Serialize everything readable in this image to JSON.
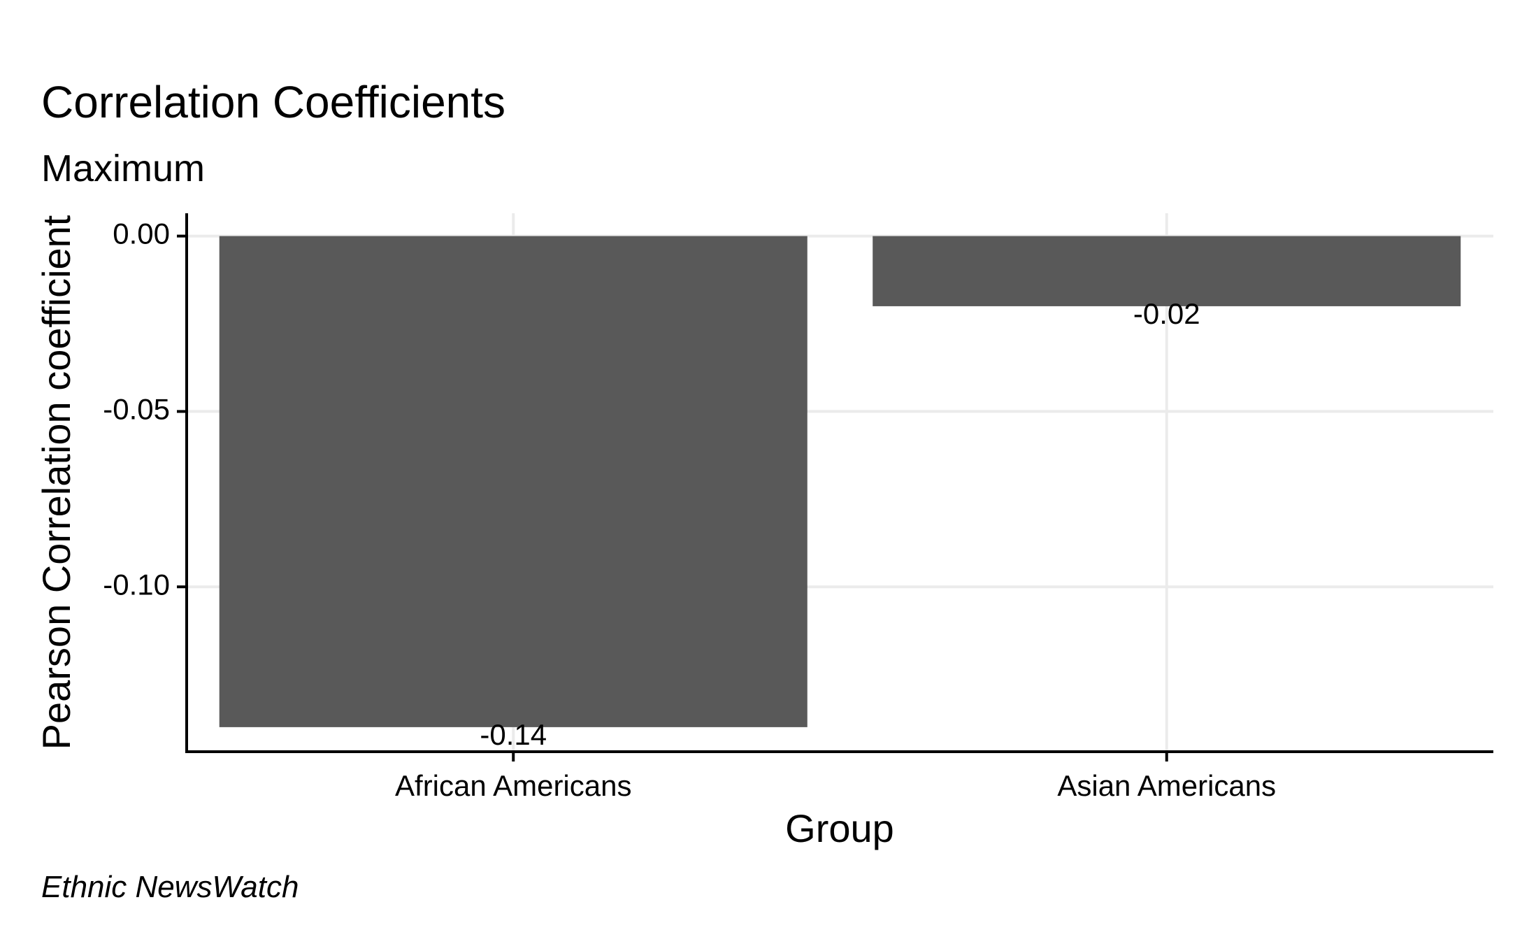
{
  "chart_data": {
    "type": "bar",
    "title": "Correlation Coefficients",
    "subtitle": "Maximum",
    "caption": "Ethnic NewsWatch",
    "xlabel": "Group",
    "ylabel": "Pearson Correlation coefficient",
    "categories": [
      "African Americans",
      "Asian Americans"
    ],
    "values": [
      -0.14,
      -0.02
    ],
    "data_labels": [
      "-0.14",
      "-0.02"
    ],
    "y_ticks": [
      0.0,
      -0.05,
      -0.1
    ],
    "y_tick_labels": [
      "0.00",
      "-0.05",
      "-0.10"
    ],
    "ylim": [
      -0.147,
      0.0065
    ],
    "grid": true,
    "legend": "none",
    "colors": {
      "bar": "#595959",
      "grid": "#ebebeb",
      "axis": "#000000",
      "background": "#ffffff"
    }
  }
}
